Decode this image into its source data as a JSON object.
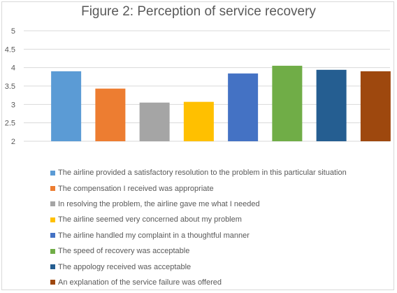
{
  "chart_data": {
    "type": "bar",
    "title": "Figure 2: Perception of service recovery",
    "xlabel": "",
    "ylabel": "",
    "ylim": [
      2,
      5
    ],
    "yticks": [
      "2",
      "2.5",
      "3",
      "3.5",
      "4",
      "4.5",
      "5"
    ],
    "grid": true,
    "legend_position": "bottom",
    "series": [
      {
        "name": "The airline provided a satisfactory resolution to the problem in this particular situation",
        "value": 3.9,
        "color": "#5b9bd5"
      },
      {
        "name": "The compensation I received was appropriate",
        "value": 3.43,
        "color": "#ed7d31"
      },
      {
        "name": "In resolving the problem, the airline gave me what I needed",
        "value": 3.05,
        "color": "#a5a5a5"
      },
      {
        "name": "The airline seemed very concerned about my problem",
        "value": 3.07,
        "color": "#ffc000"
      },
      {
        "name": "The airline handled my complaint in a thoughtful manner",
        "value": 3.84,
        "color": "#4472c4"
      },
      {
        "name": "The speed of recovery was acceptable",
        "value": 4.05,
        "color": "#70ad47"
      },
      {
        "name": "The appology received was acceptable",
        "value": 3.94,
        "color": "#255e91"
      },
      {
        "name": "An explanation of the service failure was offered",
        "value": 3.9,
        "color": "#9e480e"
      }
    ]
  }
}
